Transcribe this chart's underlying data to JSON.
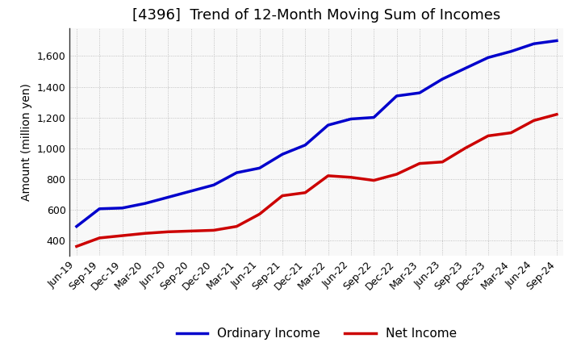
{
  "title": "[4396]  Trend of 12-Month Moving Sum of Incomes",
  "ylabel": "Amount (million yen)",
  "x_labels": [
    "Jun-19",
    "Sep-19",
    "Dec-19",
    "Mar-20",
    "Jun-20",
    "Sep-20",
    "Dec-20",
    "Mar-21",
    "Jun-21",
    "Sep-21",
    "Dec-21",
    "Mar-22",
    "Jun-22",
    "Sep-22",
    "Dec-22",
    "Mar-23",
    "Jun-23",
    "Sep-23",
    "Dec-23",
    "Mar-24",
    "Jun-24",
    "Sep-24"
  ],
  "ordinary_income": [
    490,
    605,
    610,
    640,
    680,
    720,
    760,
    840,
    870,
    960,
    1020,
    1150,
    1190,
    1200,
    1340,
    1360,
    1450,
    1520,
    1590,
    1630,
    1680,
    1700
  ],
  "net_income": [
    360,
    415,
    430,
    445,
    455,
    460,
    465,
    490,
    570,
    690,
    710,
    820,
    810,
    790,
    830,
    900,
    910,
    1000,
    1080,
    1100,
    1180,
    1220
  ],
  "ordinary_color": "#0000cc",
  "net_color": "#cc0000",
  "ylim": [
    300,
    1780
  ],
  "yticks": [
    400,
    600,
    800,
    1000,
    1200,
    1400,
    1600
  ],
  "grid_color": "#aaaaaa",
  "background_color": "#ffffff",
  "plot_bg_color": "#f8f8f8",
  "title_fontsize": 13,
  "label_fontsize": 10,
  "tick_fontsize": 9,
  "legend_fontsize": 11
}
